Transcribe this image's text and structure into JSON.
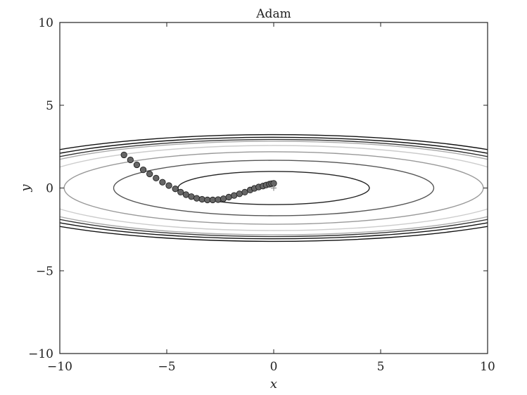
{
  "chart_data": {
    "type": "scatter",
    "title": "Adam",
    "xlabel": "x",
    "ylabel": "y",
    "xlim": [
      -10,
      10
    ],
    "ylim": [
      -10,
      10
    ],
    "xticks": [
      -10,
      -5,
      0,
      5,
      10
    ],
    "yticks": [
      -10,
      -5,
      0,
      5,
      10
    ],
    "xtick_labels": [
      "−10",
      "−5",
      "0",
      "5",
      "10"
    ],
    "ytick_labels": [
      "−10",
      "−5",
      "0",
      "5",
      "10"
    ],
    "grid": false,
    "marker_color": "#666666",
    "contours": {
      "function": "x^2/20 + y^2",
      "levels": [
        1,
        2.8,
        4.8,
        6.6,
        8,
        8.6,
        9.4,
        10.4
      ],
      "colors": [
        "#222222",
        "#555555",
        "#999999",
        "#cccccc",
        "#aaaaaa",
        "#333333",
        "#111111",
        "#111111"
      ]
    },
    "minimum_marker": {
      "x": 0,
      "y": 0
    },
    "path": {
      "x": [
        -7.0,
        -6.7,
        -6.4,
        -6.1,
        -5.8,
        -5.5,
        -5.2,
        -4.9,
        -4.6,
        -4.35,
        -4.1,
        -3.85,
        -3.6,
        -3.35,
        -3.1,
        -2.85,
        -2.6,
        -2.35,
        -2.1,
        -1.85,
        -1.6,
        -1.35,
        -1.1,
        -0.9,
        -0.7,
        -0.5,
        -0.35,
        -0.2,
        -0.1,
        0.0
      ],
      "y": [
        2.0,
        1.7,
        1.4,
        1.1,
        0.85,
        0.6,
        0.35,
        0.15,
        -0.05,
        -0.25,
        -0.4,
        -0.52,
        -0.62,
        -0.68,
        -0.72,
        -0.72,
        -0.7,
        -0.65,
        -0.55,
        -0.45,
        -0.35,
        -0.25,
        -0.12,
        -0.02,
        0.06,
        0.12,
        0.18,
        0.23,
        0.26,
        0.28
      ]
    }
  }
}
